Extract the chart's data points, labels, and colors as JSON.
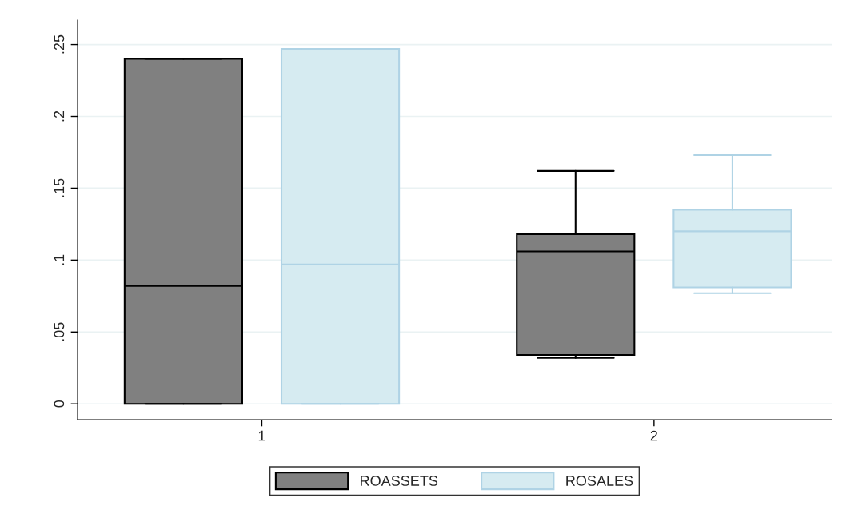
{
  "chart_data": {
    "type": "box",
    "categories": [
      "1",
      "2"
    ],
    "series": [
      {
        "name": "ROASSETS",
        "color": "#808080",
        "boxes": [
          {
            "low": 0,
            "q1": 0,
            "median": 0.082,
            "q3": 0.24,
            "high": 0.24
          },
          {
            "low": 0.032,
            "q1": 0.034,
            "median": 0.106,
            "q3": 0.118,
            "high": 0.162
          }
        ]
      },
      {
        "name": "ROSALES",
        "color": "#d6ebf1",
        "boxes": [
          {
            "low": 0,
            "q1": 0,
            "median": 0.097,
            "q3": 0.247,
            "high": 0.247
          },
          {
            "low": 0.077,
            "q1": 0.081,
            "median": 0.12,
            "q3": 0.135,
            "high": 0.173
          }
        ]
      }
    ],
    "ylim": [
      -0.011,
      0.267
    ],
    "yticks": [
      {
        "value": 0,
        "label": "0"
      },
      {
        "value": 0.05,
        "label": ".05"
      },
      {
        "value": 0.1,
        "label": ".1"
      },
      {
        "value": 0.15,
        "label": ".15"
      },
      {
        "value": 0.2,
        "label": ".2"
      },
      {
        "value": 0.25,
        "label": ".25"
      }
    ],
    "grid": "y",
    "legend": "bottom"
  }
}
